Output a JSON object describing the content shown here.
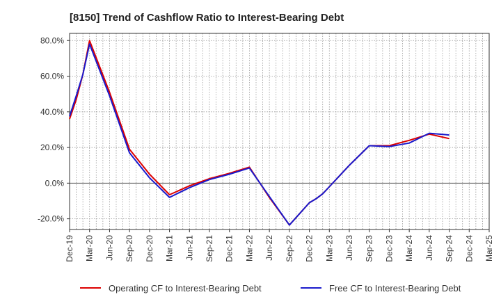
{
  "chart_data": {
    "type": "line",
    "title": "[8150]  Trend of Cashflow Ratio to Interest-Bearing Debt",
    "xlabel": "",
    "ylabel": "",
    "ylim": [
      -26,
      84
    ],
    "y_ticks": [
      -20,
      0,
      20,
      40,
      60,
      80
    ],
    "y_tick_labels": [
      "-20.0%",
      "0.0%",
      "20.0%",
      "40.0%",
      "60.0%",
      "80.0%"
    ],
    "x_tick_labels": [
      "Dec-19",
      "Mar-20",
      "Jun-20",
      "Sep-20",
      "Dec-20",
      "Mar-21",
      "Jun-21",
      "Sep-21",
      "Dec-21",
      "Mar-22",
      "Jun-22",
      "Sep-22",
      "Dec-22",
      "Mar-23",
      "Jun-23",
      "Sep-23",
      "Dec-23",
      "Mar-24",
      "Jun-24",
      "Sep-24",
      "Dec-24",
      "Mar-25"
    ],
    "x_months": [
      "2019-12",
      "2020-01",
      "2020-02",
      "2020-03",
      "2020-04",
      "2020-05",
      "2020-06",
      "2020-07",
      "2020-08",
      "2020-09",
      "2020-10",
      "2020-11",
      "2020-12",
      "2021-01",
      "2021-02",
      "2021-03",
      "2021-04",
      "2021-05",
      "2021-06",
      "2021-07",
      "2021-08",
      "2021-09",
      "2021-10",
      "2021-11",
      "2021-12",
      "2022-01",
      "2022-02",
      "2022-03",
      "2022-04",
      "2022-05",
      "2022-06",
      "2022-07",
      "2022-08",
      "2022-09",
      "2022-10",
      "2022-11",
      "2022-12",
      "2023-01",
      "2023-02",
      "2023-03",
      "2023-04",
      "2023-05",
      "2023-06",
      "2023-07",
      "2023-08",
      "2023-09",
      "2023-10",
      "2023-11",
      "2023-12",
      "2024-01",
      "2024-02",
      "2024-03",
      "2024-04",
      "2024-05",
      "2024-06",
      "2024-07",
      "2024-08",
      "2024-09",
      "2024-10",
      "2024-11",
      "2024-12",
      "2025-01",
      "2025-02",
      "2025-03"
    ],
    "grid": true,
    "legend_position": "bottom",
    "series": [
      {
        "name": "Operating CF to Interest-Bearing Debt",
        "color": "#dd0000",
        "x": [
          "2019-12",
          "2020-01",
          "2020-02",
          "2020-03",
          "2020-06",
          "2020-09",
          "2020-12",
          "2021-03",
          "2021-06",
          "2021-09",
          "2021-12",
          "2022-03",
          "2022-06",
          "2022-09",
          "2022-12",
          "2023-01",
          "2023-02",
          "2023-03",
          "2023-06",
          "2023-09",
          "2023-12",
          "2024-03",
          "2024-06",
          "2024-09"
        ],
        "values": [
          36.0,
          47.0,
          61.0,
          80.0,
          51.0,
          19.0,
          5.0,
          -6.5,
          -1.5,
          2.5,
          5.5,
          9.0,
          -8.0,
          -23.5,
          -11.0,
          -8.8,
          -6.0,
          -2.0,
          10.0,
          21.0,
          21.0,
          24.0,
          27.5,
          25.0
        ]
      },
      {
        "name": "Free CF to Interest-Bearing Debt",
        "color": "#1a1acc",
        "x": [
          "2019-12",
          "2020-01",
          "2020-02",
          "2020-03",
          "2020-06",
          "2020-09",
          "2020-12",
          "2021-03",
          "2021-06",
          "2021-09",
          "2021-12",
          "2022-03",
          "2022-06",
          "2022-09",
          "2022-12",
          "2023-01",
          "2023-02",
          "2023-03",
          "2023-06",
          "2023-09",
          "2023-12",
          "2024-03",
          "2024-06",
          "2024-09"
        ],
        "values": [
          37.5,
          49.0,
          61.0,
          78.0,
          49.0,
          17.0,
          3.0,
          -8.0,
          -2.5,
          2.0,
          5.0,
          8.5,
          -7.5,
          -23.5,
          -11.0,
          -8.8,
          -6.0,
          -2.0,
          10.0,
          21.0,
          20.5,
          22.5,
          28.0,
          27.0
        ]
      }
    ]
  }
}
